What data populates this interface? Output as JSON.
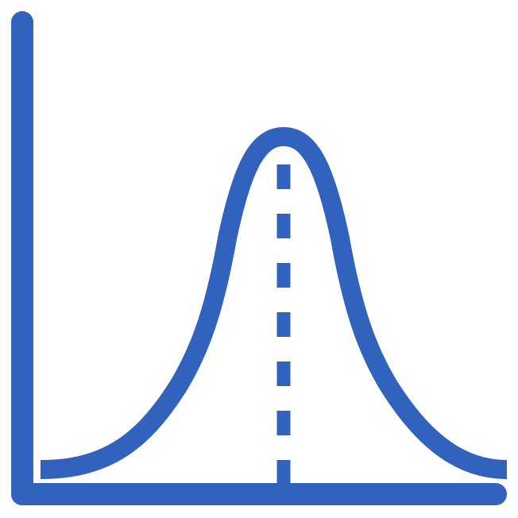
{
  "icon": {
    "name": "normal-distribution-icon",
    "color": "#3162bd",
    "background": "#ffffff"
  }
}
